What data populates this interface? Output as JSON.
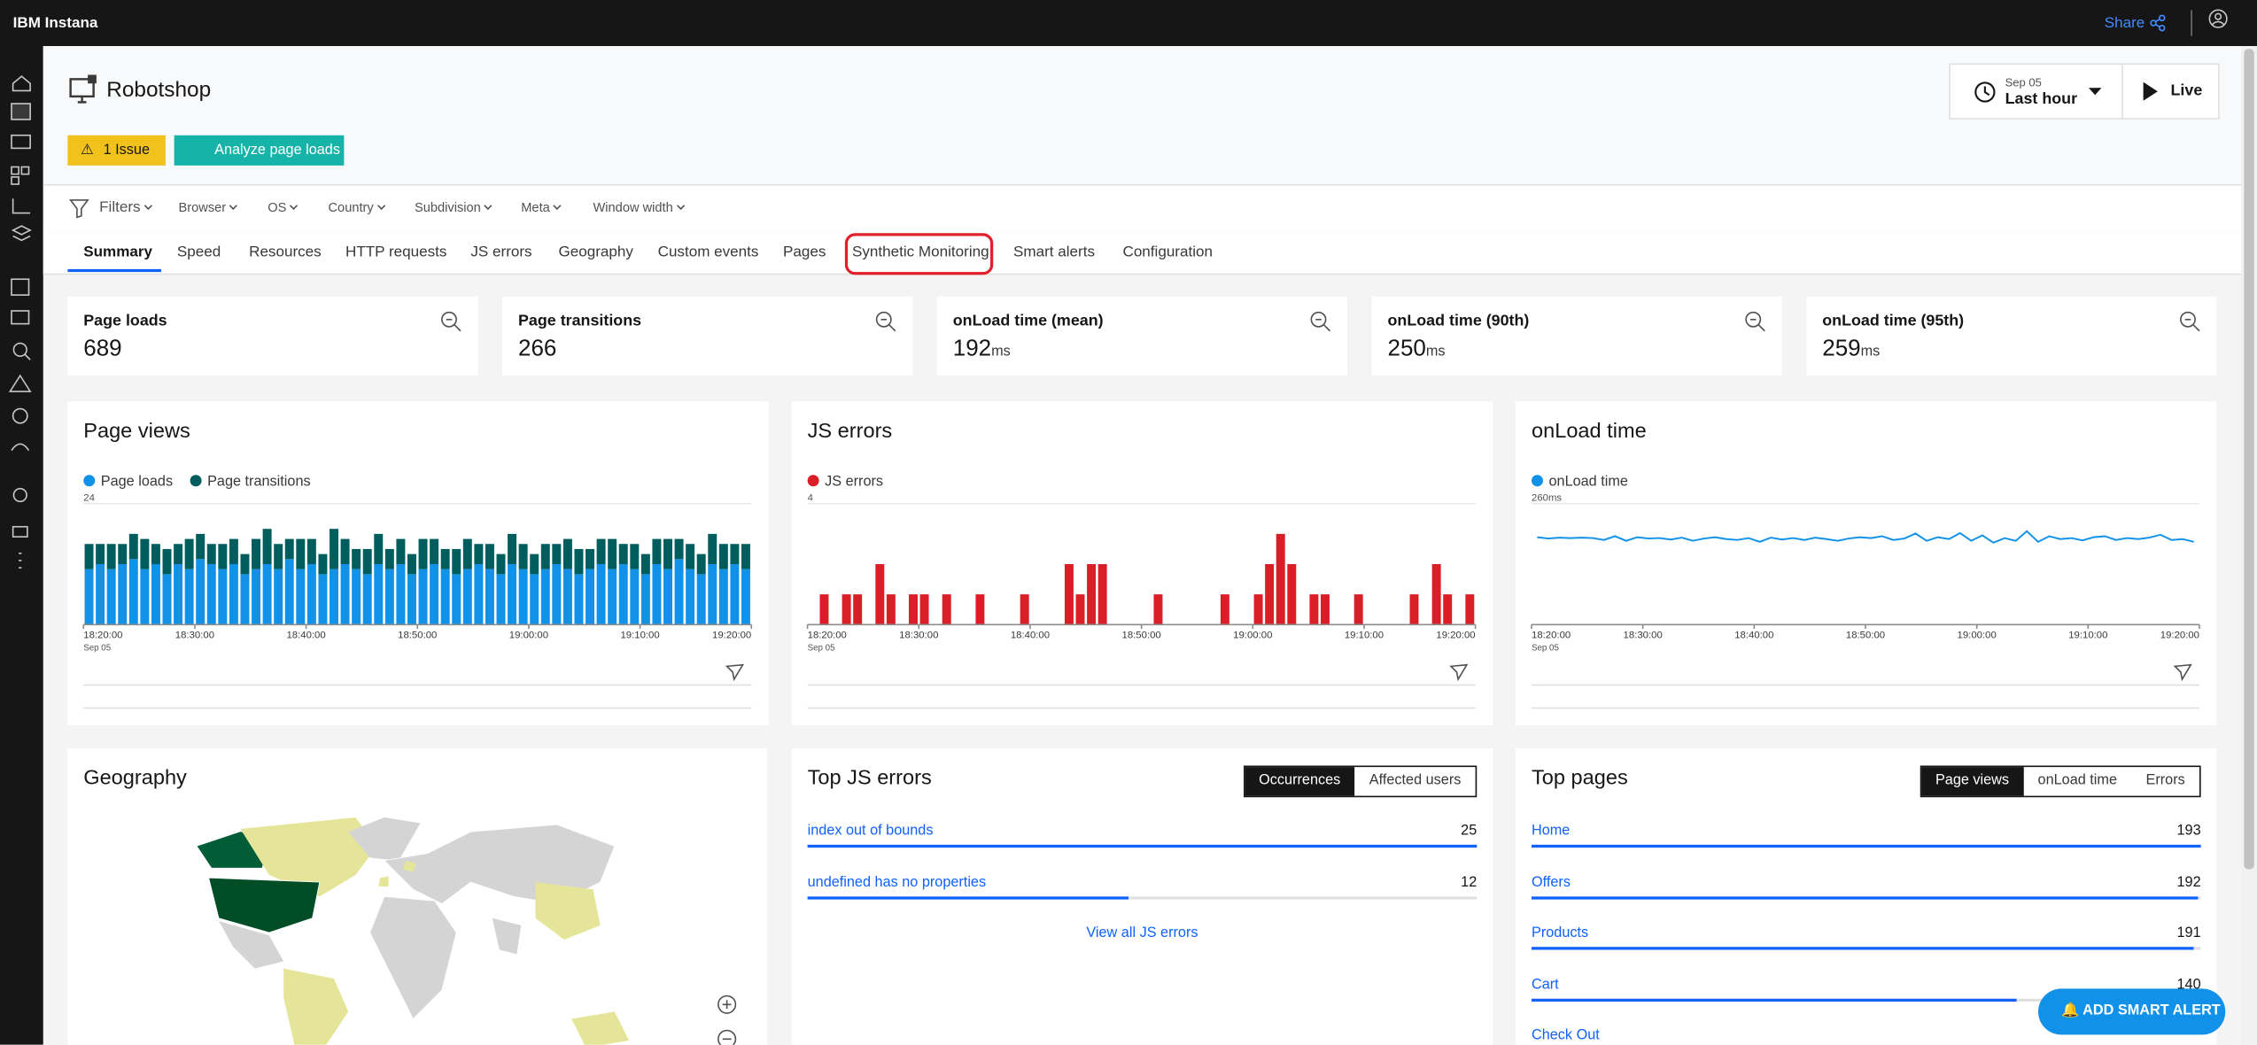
{
  "header": {
    "brand": "IBM Instana",
    "share": "Share"
  },
  "page": {
    "title": "Robotshop",
    "issue": "1 Issue",
    "analyze": "Analyze page loads",
    "date": "Sep 05",
    "range": "Last hour",
    "live": "Live"
  },
  "filters": {
    "label": "Filters",
    "items": [
      "Browser",
      "OS",
      "Country",
      "Subdivision",
      "Meta",
      "Window width"
    ]
  },
  "tabs": [
    "Summary",
    "Speed",
    "Resources",
    "HTTP requests",
    "JS errors",
    "Geography",
    "Custom events",
    "Pages",
    "Synthetic Monitoring",
    "Smart alerts",
    "Configuration"
  ],
  "kpis": [
    {
      "label": "Page loads",
      "value": 689
    },
    {
      "label": "Page transitions",
      "value": 266
    },
    {
      "label": "onLoad time (mean)",
      "value": 192,
      "unit": "ms"
    },
    {
      "label": "onLoad time (90th)",
      "value": 250,
      "unit": "ms"
    },
    {
      "label": "onLoad time (95th)",
      "value": 259,
      "unit": "ms"
    }
  ],
  "charts": [
    {
      "type": "stacked_bar",
      "title": "Page views",
      "ylim": [
        0,
        24
      ],
      "yticks": [
        24
      ],
      "xticks": [
        "18:20:00",
        "18:30:00",
        "18:40:00",
        "18:50:00",
        "19:00:00",
        "19:10:00",
        "19:20:00"
      ],
      "xsub": "Sep 05",
      "series": [
        {
          "name": "Page loads",
          "color": "#1192e8",
          "values": [
            11,
            12,
            11,
            12,
            13,
            11,
            12,
            10,
            12,
            11,
            13,
            12,
            11,
            12,
            10,
            11,
            12,
            11,
            13,
            11,
            12,
            10,
            11,
            12,
            11,
            10,
            12,
            11,
            12,
            10,
            11,
            12,
            11,
            10,
            11,
            12,
            11,
            10,
            12,
            11,
            10,
            11,
            12,
            11,
            10,
            11,
            12,
            11,
            12,
            11,
            10,
            12,
            11,
            13,
            11,
            10,
            12,
            11,
            12,
            11
          ]
        },
        {
          "name": "Page transitions",
          "color": "#005d5d",
          "values": [
            5,
            4,
            5,
            4,
            5,
            6,
            4,
            5,
            4,
            6,
            5,
            4,
            5,
            5,
            4,
            6,
            7,
            5,
            4,
            6,
            5,
            4,
            8,
            5,
            4,
            5,
            6,
            4,
            5,
            4,
            6,
            5,
            4,
            5,
            6,
            4,
            5,
            4,
            6,
            5,
            4,
            5,
            4,
            6,
            5,
            4,
            5,
            6,
            4,
            5,
            4,
            5,
            6,
            4,
            5,
            4,
            6,
            5,
            4,
            5
          ]
        }
      ]
    },
    {
      "type": "bar",
      "title": "JS errors",
      "ylim": [
        0,
        4
      ],
      "yticks": [
        4
      ],
      "xticks": [
        "18:20:00",
        "18:30:00",
        "18:40:00",
        "18:50:00",
        "19:00:00",
        "19:10:00",
        "19:20:00"
      ],
      "xsub": "Sep 05",
      "series": [
        {
          "name": "JS errors",
          "color": "#da1e28",
          "values": [
            0,
            1,
            0,
            1,
            1,
            0,
            2,
            1,
            0,
            1,
            1,
            0,
            1,
            0,
            0,
            1,
            0,
            0,
            0,
            1,
            0,
            0,
            0,
            2,
            1,
            2,
            2,
            0,
            0,
            0,
            0,
            1,
            0,
            0,
            0,
            0,
            0,
            1,
            0,
            0,
            1,
            2,
            3,
            2,
            0,
            1,
            1,
            0,
            0,
            1,
            0,
            0,
            0,
            0,
            1,
            0,
            2,
            1,
            0,
            1
          ]
        }
      ]
    },
    {
      "type": "line",
      "title": "onLoad time",
      "ylim": [
        0,
        260
      ],
      "yticks": [
        {
          "value": 260,
          "label": "260ms"
        }
      ],
      "xticks": [
        "18:20:00",
        "18:30:00",
        "18:40:00",
        "18:50:00",
        "19:00:00",
        "19:10:00",
        "19:20:00"
      ],
      "xsub": "Sep 05",
      "series": [
        {
          "name": "onLoad time",
          "color": "#1192e8",
          "values": [
            188,
            185,
            187,
            186,
            187,
            186,
            182,
            190,
            180,
            188,
            185,
            186,
            183,
            187,
            180,
            185,
            188,
            184,
            182,
            186,
            178,
            187,
            183,
            186,
            182,
            187,
            184,
            180,
            185,
            188,
            186,
            190,
            182,
            185,
            196,
            180,
            188,
            184,
            197,
            180,
            192,
            176,
            186,
            180,
            201,
            178,
            190,
            184,
            186,
            181,
            188,
            190,
            182,
            186,
            184,
            187,
            193,
            182,
            184,
            178
          ]
        }
      ]
    }
  ],
  "geography": {
    "title": "Geography"
  },
  "top_js_errors": {
    "title": "Top JS errors",
    "toggle": [
      "Occurrences",
      "Affected users"
    ],
    "rows": [
      {
        "label": "index out of bounds",
        "value": 25
      },
      {
        "label": "undefined has no properties",
        "value": 12
      }
    ],
    "link": "View all JS errors"
  },
  "top_pages": {
    "title": "Top pages",
    "toggle": [
      "Page views",
      "onLoad time",
      "Errors"
    ],
    "rows": [
      {
        "label": "Home",
        "value": 193
      },
      {
        "label": "Offers",
        "value": 192
      },
      {
        "label": "Products",
        "value": 191
      },
      {
        "label": "Cart",
        "value": 140
      },
      {
        "label": "Check Out"
      }
    ]
  },
  "alert_button": "ADD SMART ALERT"
}
